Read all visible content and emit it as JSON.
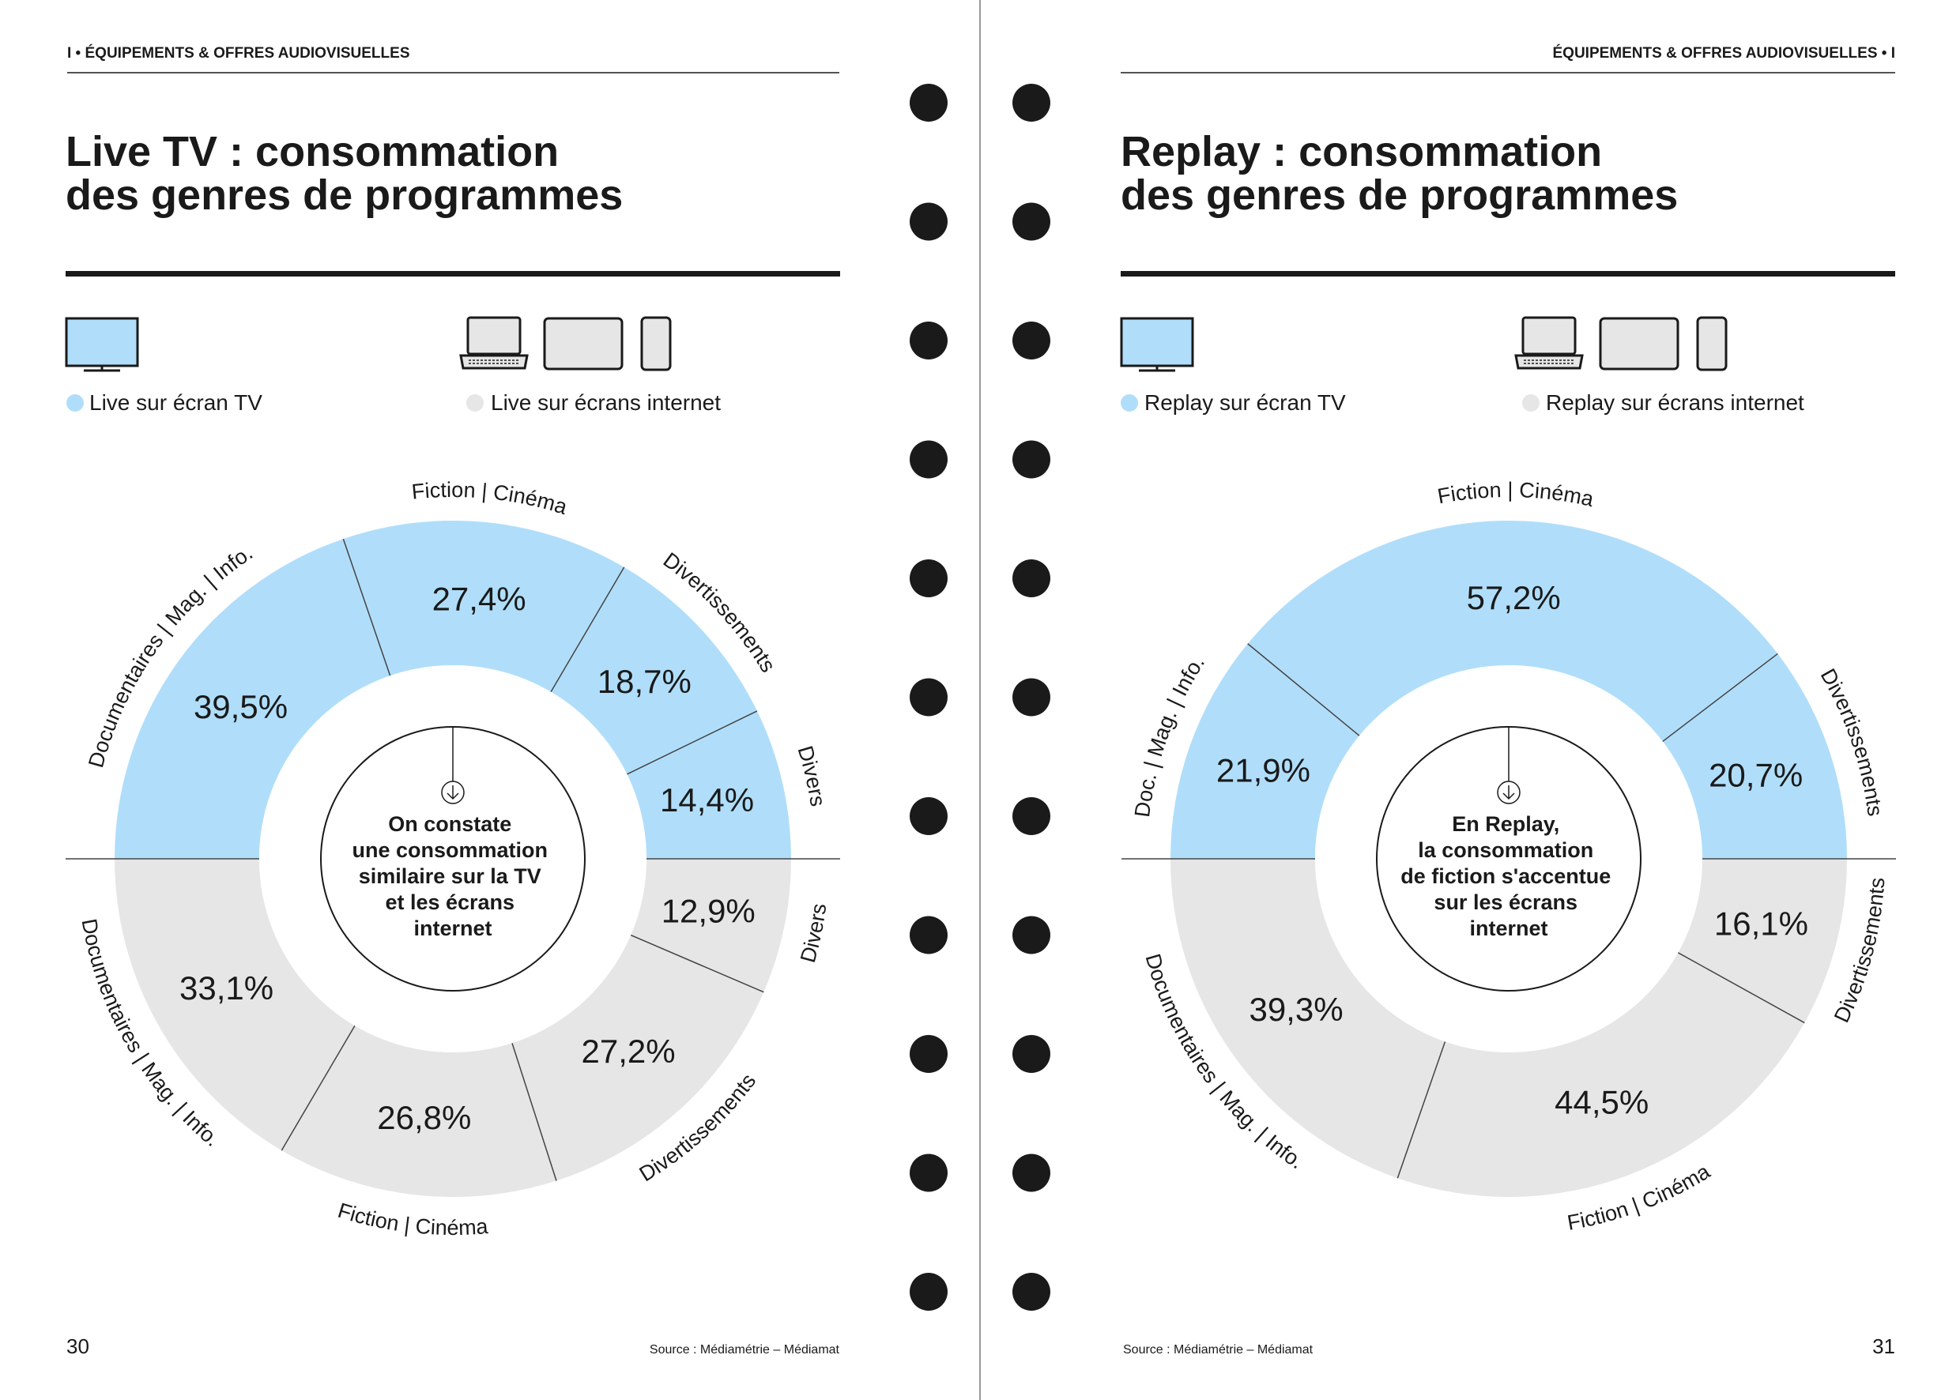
{
  "colors": {
    "tv": "#b0defa",
    "internet": "#e6e6e6",
    "ink": "#1a1a1a",
    "line": "#444444"
  },
  "left": {
    "header": "I • ÉQUIPEMENTS & OFFRES AUDIOVISUELLES",
    "title": [
      "Live TV : consommation",
      "des genres de programmes"
    ],
    "legend_tv": "Live sur écran TV",
    "legend_internet": "Live sur écrans internet",
    "center_text": [
      "On constate",
      "une consommation",
      "similaire sur la TV",
      "et les écrans",
      "internet"
    ],
    "source": "Source : Médiamétrie – Médiamat",
    "page_number": "30"
  },
  "right": {
    "header": "ÉQUIPEMENTS & OFFRES AUDIOVISUELLES • I",
    "title": [
      "Replay : consommation",
      "des genres de programmes"
    ],
    "legend_tv": "Replay sur écran TV",
    "legend_internet": "Replay sur écrans internet",
    "center_text": [
      "En Replay,",
      "la consommation",
      "de fiction s'accentue",
      "sur les écrans",
      "internet"
    ],
    "source": "Source : Médiamétrie – Médiamat",
    "page_number": "31"
  },
  "chart_data": [
    {
      "type": "pie",
      "title": "Live TV : consommation des genres de programmes",
      "series": [
        {
          "name": "Live sur écran TV",
          "categories": [
            "Documentaires | Mag. | Info.",
            "Fiction | Cinéma",
            "Divertissements",
            "Divers"
          ],
          "values": [
            39.5,
            27.4,
            18.7,
            14.4
          ],
          "labels": [
            "39,5%",
            "27,4%",
            "18,7%",
            "14,4%"
          ]
        },
        {
          "name": "Live sur écrans internet",
          "categories": [
            "Documentaires | Mag. | Info.",
            "Fiction | Cinéma",
            "Divertissements",
            "Divers"
          ],
          "values": [
            33.1,
            26.8,
            27.2,
            12.9
          ],
          "labels": [
            "33,1%",
            "26,8%",
            "27,2%",
            "12,9%"
          ]
        }
      ]
    },
    {
      "type": "pie",
      "title": "Replay : consommation des genres de programmes",
      "series": [
        {
          "name": "Replay sur écran TV",
          "categories": [
            "Doc. | Mag. | Info.",
            "Fiction | Cinéma",
            "Divertissements"
          ],
          "values": [
            21.9,
            57.2,
            20.7
          ],
          "labels": [
            "21,9%",
            "57,2%",
            "20,7%"
          ]
        },
        {
          "name": "Replay sur écrans internet",
          "categories": [
            "Documentaires | Mag. | Info.",
            "Fiction | Cinéma",
            "Divertissements"
          ],
          "values": [
            39.3,
            44.5,
            16.1
          ],
          "labels": [
            "39,3%",
            "44,5%",
            "16,1%"
          ]
        }
      ]
    }
  ]
}
